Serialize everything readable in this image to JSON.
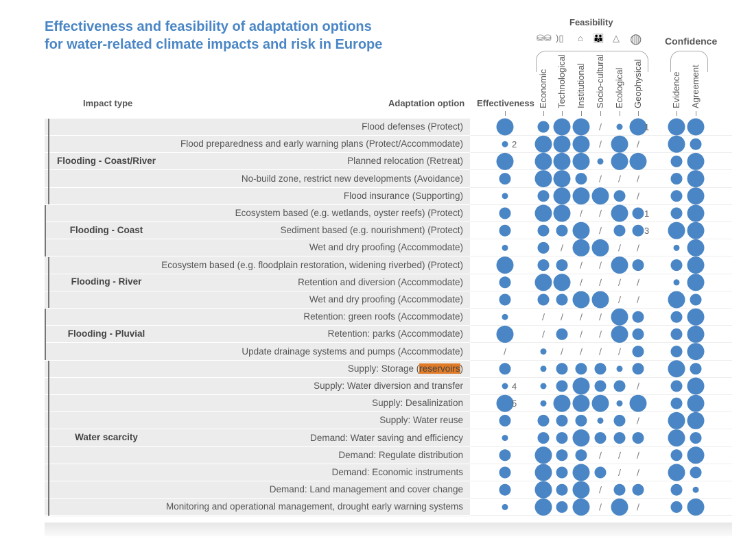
{
  "title": [
    "Effectiveness and feasibility of adaptation options",
    "for water-related climate impacts and risk in Europe"
  ],
  "headers": {
    "impact_type": "Impact type",
    "adaptation_option": "Adaptation option",
    "effectiveness": "Effectiveness",
    "feasibility": "Feasibility",
    "confidence": "Confidence"
  },
  "columns": [
    "Effectiveness",
    "Economic",
    "Technological",
    "Institutional",
    "Socio-cultural",
    "Ecological",
    "Geophysical",
    "Evidence",
    "Agreement"
  ],
  "feasibility_icons": [
    "coins-icon",
    "phone-icon",
    "institution-icon",
    "people-icon",
    "ecosystem-icon",
    "globe-icon"
  ],
  "groups": [
    {
      "label": "Flooding - Coast/River",
      "start": 0,
      "count": 5
    },
    {
      "label": "Flooding - Coast",
      "start": 5,
      "count": 3
    },
    {
      "label": "Flooding - River",
      "start": 8,
      "count": 3
    },
    {
      "label": "Flooding - Pluvial",
      "start": 11,
      "count": 3
    },
    {
      "label": "Water scarcity",
      "start": 14,
      "count": 9
    }
  ],
  "chart_data": {
    "type": "table",
    "title": "Effectiveness and feasibility of adaptation options for water-related climate impacts and risk in Europe",
    "level_scale": {
      "0": "no evidence (/)",
      "1": "low",
      "2": "medium",
      "3": "high"
    },
    "dot_color": "#4a86c5",
    "rows": [
      {
        "option": "Flood defenses (Protect)",
        "values": [
          3,
          2,
          3,
          3,
          0,
          1,
          3,
          3,
          3
        ],
        "notes": {
          "6": "1"
        }
      },
      {
        "option": "Flood preparedness and early warning plans (Protect/Accommodate)",
        "values": [
          1,
          3,
          3,
          3,
          0,
          3,
          0,
          3,
          2
        ],
        "notes": {
          "0": "2"
        }
      },
      {
        "option": "Planned relocation (Retreat)",
        "values": [
          3,
          3,
          3,
          3,
          1,
          3,
          3,
          2,
          3
        ]
      },
      {
        "option": "No-build zone, restrict new developments (Avoidance)",
        "values": [
          2,
          3,
          3,
          2,
          0,
          0,
          0,
          2,
          3
        ]
      },
      {
        "option": "Flood insurance (Supporting)",
        "values": [
          1,
          2,
          3,
          3,
          3,
          2,
          0,
          2,
          3
        ]
      },
      {
        "option": "Ecosystem based (e.g. wetlands, oyster reefs) (Protect)",
        "values": [
          2,
          3,
          3,
          0,
          0,
          3,
          2,
          2,
          3
        ],
        "notes": {
          "6": "1"
        }
      },
      {
        "option": "Sediment based (e.g. nourishment) (Protect)",
        "values": [
          2,
          2,
          2,
          3,
          0,
          2,
          2,
          3,
          3
        ],
        "notes": {
          "6": "3"
        }
      },
      {
        "option": "Wet and dry proofing (Accommodate)",
        "values": [
          1,
          2,
          0,
          3,
          3,
          0,
          0,
          1,
          3
        ]
      },
      {
        "option": "Ecosystem based (e.g. floodplain restoration, widening riverbed) (Protect)",
        "values": [
          3,
          2,
          2,
          0,
          0,
          3,
          2,
          2,
          3
        ]
      },
      {
        "option": "Retention and diversion (Accommodate)",
        "values": [
          2,
          3,
          3,
          0,
          0,
          0,
          0,
          1,
          3
        ]
      },
      {
        "option": "Wet and dry proofing (Accommodate)",
        "values": [
          2,
          2,
          2,
          3,
          3,
          0,
          0,
          3,
          2
        ]
      },
      {
        "option": "Retention: green roofs (Accommodate)",
        "values": [
          1,
          0,
          0,
          0,
          0,
          3,
          2,
          2,
          3
        ]
      },
      {
        "option": "Retention: parks (Accommodate)",
        "values": [
          3,
          0,
          2,
          0,
          0,
          3,
          2,
          2,
          3
        ]
      },
      {
        "option": "Update drainage systems and pumps (Accommodate)",
        "values": [
          0,
          1,
          0,
          0,
          0,
          0,
          2,
          2,
          3
        ]
      },
      {
        "option": "Supply: Storage (",
        "highlight": "reservoirs",
        "option_end": ")",
        "values": [
          2,
          1,
          2,
          2,
          2,
          1,
          2,
          3,
          2
        ]
      },
      {
        "option": "Supply: Water diversion and transfer",
        "values": [
          1,
          1,
          2,
          3,
          2,
          2,
          0,
          2,
          3
        ],
        "notes": {
          "0": "4"
        }
      },
      {
        "option": "Supply: Desalinization",
        "values": [
          3,
          1,
          3,
          3,
          3,
          1,
          3,
          2,
          3
        ],
        "notes": {
          "0": "5"
        }
      },
      {
        "option": "Supply: Water reuse",
        "values": [
          2,
          2,
          2,
          2,
          1,
          2,
          0,
          3,
          3
        ]
      },
      {
        "option": "Demand: Water saving and efficiency",
        "values": [
          1,
          2,
          2,
          3,
          2,
          2,
          2,
          3,
          2
        ]
      },
      {
        "option": "Demand: Regulate distribution",
        "values": [
          2,
          3,
          2,
          2,
          0,
          0,
          0,
          2,
          3
        ]
      },
      {
        "option": "Demand: Economic instruments",
        "values": [
          2,
          3,
          2,
          3,
          2,
          0,
          0,
          3,
          2
        ]
      },
      {
        "option": "Demand: Land management and cover change",
        "values": [
          2,
          3,
          2,
          3,
          0,
          2,
          2,
          2,
          1
        ]
      },
      {
        "option": "Monitoring and operational management, drought early warning systems",
        "values": [
          1,
          3,
          2,
          3,
          0,
          3,
          0,
          2,
          3
        ]
      }
    ]
  }
}
